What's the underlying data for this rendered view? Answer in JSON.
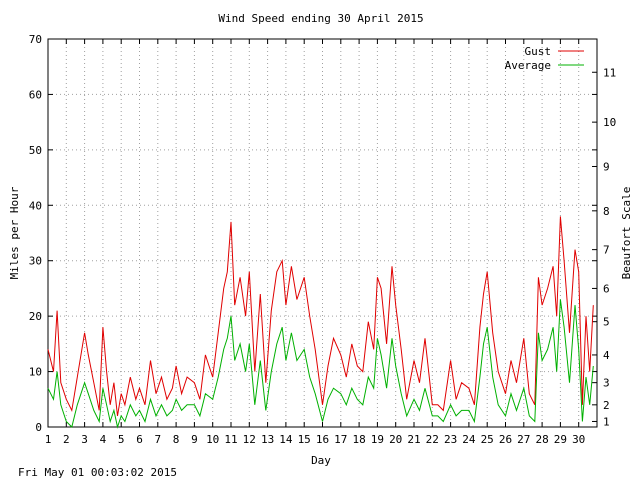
{
  "chart_data": {
    "type": "line",
    "title": "Wind Speed ending 30 April 2015",
    "xlabel": "Day",
    "ylabel": "Miles per Hour",
    "y2label": "Beaufort Scale",
    "footer": "Fri May 01 00:03:02 2015",
    "xlim": [
      1,
      31
    ],
    "ylim": [
      0,
      70
    ],
    "x_ticks": [
      1,
      2,
      3,
      4,
      5,
      6,
      7,
      8,
      9,
      10,
      11,
      12,
      13,
      14,
      15,
      16,
      17,
      18,
      19,
      20,
      21,
      22,
      23,
      24,
      25,
      26,
      27,
      28,
      29,
      30
    ],
    "y_ticks": [
      0,
      10,
      20,
      30,
      40,
      50,
      60,
      70
    ],
    "beaufort_ticks": [
      {
        "label": "1",
        "mph": 1
      },
      {
        "label": "2",
        "mph": 4
      },
      {
        "label": "3",
        "mph": 8
      },
      {
        "label": "4",
        "mph": 13
      },
      {
        "label": "5",
        "mph": 19
      },
      {
        "label": "6",
        "mph": 25
      },
      {
        "label": "7",
        "mph": 32
      },
      {
        "label": "8",
        "mph": 39
      },
      {
        "label": "9",
        "mph": 47
      },
      {
        "label": "10",
        "mph": 55
      },
      {
        "label": "11",
        "mph": 64
      }
    ],
    "grid": true,
    "legend_position": "top-right",
    "series": [
      {
        "name": "Gust",
        "color": "#e00000",
        "x": [
          1.0,
          1.3,
          1.5,
          1.7,
          2.0,
          2.3,
          2.6,
          3.0,
          3.2,
          3.5,
          3.8,
          4.0,
          4.2,
          4.4,
          4.6,
          4.8,
          5.0,
          5.2,
          5.5,
          5.8,
          6.0,
          6.3,
          6.6,
          6.9,
          7.2,
          7.5,
          7.8,
          8.0,
          8.3,
          8.6,
          9.0,
          9.3,
          9.6,
          10.0,
          10.3,
          10.6,
          10.8,
          11.0,
          11.2,
          11.5,
          11.8,
          12.0,
          12.3,
          12.6,
          12.9,
          13.2,
          13.5,
          13.8,
          14.0,
          14.3,
          14.6,
          15.0,
          15.3,
          15.6,
          16.0,
          16.3,
          16.6,
          17.0,
          17.3,
          17.6,
          17.9,
          18.2,
          18.5,
          18.8,
          19.0,
          19.2,
          19.5,
          19.8,
          20.0,
          20.3,
          20.6,
          21.0,
          21.3,
          21.6,
          22.0,
          22.3,
          22.6,
          23.0,
          23.3,
          23.6,
          24.0,
          24.3,
          24.6,
          24.8,
          25.0,
          25.3,
          25.6,
          26.0,
          26.3,
          26.6,
          27.0,
          27.3,
          27.6,
          27.8,
          28.0,
          28.3,
          28.6,
          28.8,
          29.0,
          29.2,
          29.5,
          29.8,
          30.0,
          30.2,
          30.4,
          30.6,
          30.8
        ],
        "values": [
          14,
          10,
          21,
          8,
          5,
          3,
          9,
          17,
          13,
          8,
          3,
          18,
          10,
          4,
          8,
          2,
          6,
          4,
          9,
          5,
          7,
          4,
          12,
          6,
          9,
          5,
          7,
          11,
          6,
          9,
          8,
          5,
          13,
          9,
          17,
          25,
          28,
          37,
          22,
          27,
          20,
          28,
          10,
          24,
          8,
          21,
          28,
          30,
          22,
          29,
          23,
          27,
          20,
          14,
          4,
          11,
          16,
          13,
          9,
          15,
          11,
          10,
          19,
          14,
          27,
          25,
          15,
          29,
          22,
          14,
          5,
          12,
          8,
          16,
          4,
          4,
          3,
          12,
          5,
          8,
          7,
          4,
          18,
          24,
          28,
          17,
          10,
          6,
          12,
          8,
          16,
          6,
          4,
          27,
          22,
          25,
          29,
          20,
          38,
          30,
          17,
          32,
          28,
          4,
          20,
          10,
          22
        ]
      },
      {
        "name": "Average",
        "color": "#00b000",
        "x": [
          1.0,
          1.3,
          1.5,
          1.7,
          2.0,
          2.3,
          2.6,
          3.0,
          3.2,
          3.5,
          3.8,
          4.0,
          4.2,
          4.4,
          4.6,
          4.8,
          5.0,
          5.2,
          5.5,
          5.8,
          6.0,
          6.3,
          6.6,
          6.9,
          7.2,
          7.5,
          7.8,
          8.0,
          8.3,
          8.6,
          9.0,
          9.3,
          9.6,
          10.0,
          10.3,
          10.6,
          10.8,
          11.0,
          11.2,
          11.5,
          11.8,
          12.0,
          12.3,
          12.6,
          12.9,
          13.2,
          13.5,
          13.8,
          14.0,
          14.3,
          14.6,
          15.0,
          15.3,
          15.6,
          16.0,
          16.3,
          16.6,
          17.0,
          17.3,
          17.6,
          17.9,
          18.2,
          18.5,
          18.8,
          19.0,
          19.2,
          19.5,
          19.8,
          20.0,
          20.3,
          20.6,
          21.0,
          21.3,
          21.6,
          22.0,
          22.3,
          22.6,
          23.0,
          23.3,
          23.6,
          24.0,
          24.3,
          24.6,
          24.8,
          25.0,
          25.3,
          25.6,
          26.0,
          26.3,
          26.6,
          27.0,
          27.3,
          27.6,
          27.8,
          28.0,
          28.3,
          28.6,
          28.8,
          29.0,
          29.2,
          29.5,
          29.8,
          30.0,
          30.2,
          30.4,
          30.6,
          30.8
        ],
        "values": [
          7,
          5,
          10,
          4,
          1,
          0,
          4,
          8,
          6,
          3,
          1,
          7,
          4,
          1,
          3,
          0,
          2,
          1,
          4,
          2,
          3,
          1,
          5,
          2,
          4,
          2,
          3,
          5,
          3,
          4,
          4,
          2,
          6,
          5,
          9,
          14,
          16,
          20,
          12,
          15,
          10,
          15,
          4,
          12,
          3,
          10,
          15,
          18,
          12,
          17,
          12,
          14,
          9,
          6,
          1,
          5,
          7,
          6,
          4,
          7,
          5,
          4,
          9,
          7,
          16,
          13,
          7,
          16,
          11,
          6,
          2,
          5,
          3,
          7,
          2,
          2,
          1,
          4,
          2,
          3,
          3,
          1,
          9,
          15,
          18,
          9,
          4,
          2,
          6,
          3,
          7,
          2,
          1,
          17,
          12,
          14,
          18,
          10,
          23,
          18,
          8,
          22,
          14,
          1,
          9,
          4,
          11
        ]
      }
    ]
  }
}
